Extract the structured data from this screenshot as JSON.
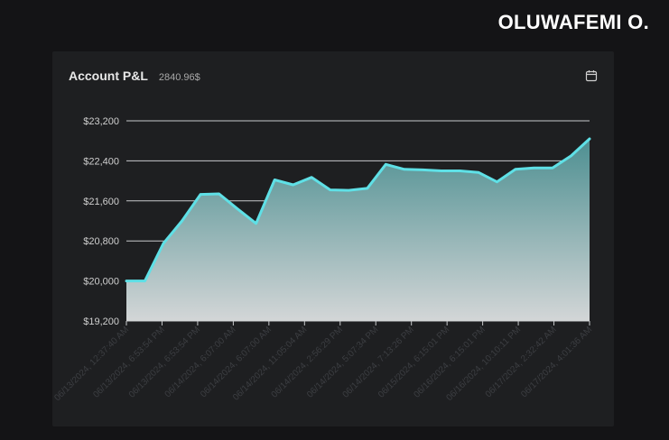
{
  "brand": {
    "name": "OLUWAFEMI O."
  },
  "card": {
    "title": "Account P&L",
    "value": "2840.96$",
    "calendar_icon": "calendar-icon"
  },
  "colors": {
    "line": "#5fe0e6",
    "area_top": "#4d8f91",
    "area_bottom": "#d3d6d7",
    "grid": "#c7c9cb",
    "background": "#141416",
    "card": "#1e1f21"
  },
  "chart_data": {
    "type": "area",
    "title": "Account P&L",
    "xlabel": "",
    "ylabel": "",
    "ylim": [
      19200,
      23200
    ],
    "yticks": [
      19200,
      20000,
      20800,
      21600,
      22400,
      23200
    ],
    "ytick_labels": [
      "$19,200",
      "$20,000",
      "$20,800",
      "$21,600",
      "$22,400",
      "$23,200"
    ],
    "grid": true,
    "xtick_labels": [
      "06/13/2024, 12:37:40 AM",
      "06/13/2024, 6:53:54 PM",
      "06/13/2024, 6:53:54 PM",
      "06/14/2024, 6:07:00 AM",
      "06/14/2024, 6:07:00 AM",
      "06/14/2024, 11:05:04 AM",
      "06/14/2024, 2:56:29 PM",
      "06/14/2024, 5:07:34 PM",
      "06/14/2024, 7:13:26 PM",
      "06/15/2024, 6:15:01 PM",
      "06/16/2024, 6:15:01 PM",
      "06/16/2024, 10:10:11 PM",
      "06/17/2024, 2:32:42 AM",
      "06/17/2024, 4:01:36 AM"
    ],
    "values": [
      20000,
      20000,
      20750,
      21200,
      21730,
      21740,
      21440,
      21150,
      22020,
      21920,
      22070,
      21820,
      21810,
      21850,
      22330,
      22230,
      22220,
      22200,
      22200,
      22170,
      21980,
      22230,
      22260,
      22260,
      22500,
      22840
    ]
  }
}
